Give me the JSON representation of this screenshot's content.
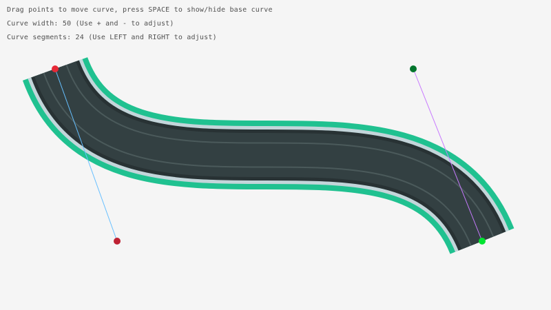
{
  "instructions": {
    "line1": "Drag points to move curve, press SPACE to show/hide base curve",
    "line2": "Curve width: 50 (Use + and - to adjust)",
    "line3": "Curve segments: 24 (Use LEFT and RIGHT to adjust)"
  },
  "curve": {
    "width": 50,
    "segments": 24,
    "start_point_color": "#e62937",
    "start_control_color": "#be2133",
    "end_point_color": "#00e430",
    "end_control_color": "#00752c",
    "start_handle_color": "#66bfff",
    "end_handle_color": "#c87aff",
    "border_color": "#20c190",
    "edge_color": "#c3d5da",
    "asphalt_color": "#334042",
    "lane_color": "#4b5a5b"
  }
}
